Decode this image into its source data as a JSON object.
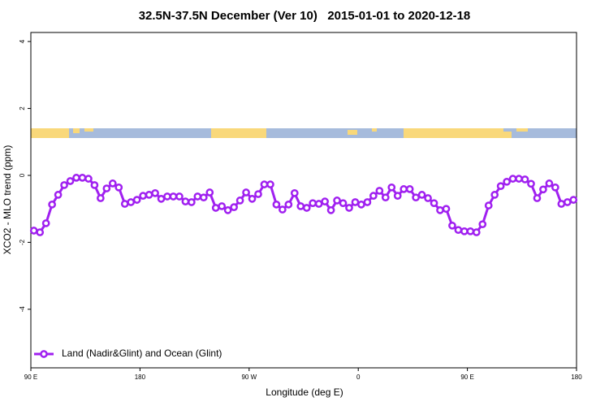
{
  "chart_data": {
    "type": "line",
    "title": "32.5N-37.5N December (Ver 10)   2015-01-01 to 2020-12-18",
    "x_label": "Longitude (deg E)",
    "y_label": "XCO2 - MLO trend (ppm)",
    "xlim": [
      90,
      540
    ],
    "ylim": [
      -5.75,
      4.27
    ],
    "xticks": [
      {
        "value": 90,
        "label": "90 E"
      },
      180,
      {
        "value": 270,
        "label": "90 W"
      },
      {
        "value": 360,
        "label": "0"
      },
      {
        "value": 450,
        "label": "90 E"
      },
      180.0001
    ],
    "yticks": [
      -4,
      -2,
      0,
      2,
      4
    ],
    "legend": "bottom-left",
    "x": [
      92.5,
      97.5,
      102.5,
      107.5,
      112.5,
      117.5,
      122.5,
      127.5,
      132.5,
      137.5,
      142.5,
      147.5,
      152.5,
      157.5,
      162.5,
      167.5,
      172.5,
      177.5,
      182.5,
      187.5,
      192.5,
      197.5,
      202.5,
      207.5,
      212.5,
      217.5,
      222.5,
      227.5,
      232.5,
      237.5,
      242.5,
      247.5,
      252.5,
      257.5,
      262.5,
      267.5,
      272.5,
      277.5,
      282.5,
      287.5,
      292.5,
      297.5,
      302.5,
      307.5,
      312.5,
      317.5,
      322.5,
      327.5,
      332.5,
      337.5,
      342.5,
      347.5,
      352.5,
      357.5,
      362.5,
      367.5,
      372.5,
      377.5,
      382.5,
      387.5,
      392.5,
      397.5,
      402.5,
      407.5,
      412.5,
      417.5,
      422.5,
      427.5,
      432.5,
      437.5,
      442.5,
      447.5,
      452.5,
      457.5,
      462.5,
      467.5,
      472.5,
      477.5,
      482.5,
      487.5,
      492.5,
      497.5,
      502.5,
      507.5,
      512.5,
      517.5,
      522.5,
      527.5,
      532.5,
      537.5
    ],
    "series": [
      {
        "name": "Land (Nadir&Glint) and Ocean (Glint)",
        "color": "#a020f0",
        "values": [
          -1.65,
          -1.7,
          -1.43,
          -0.87,
          -0.58,
          -0.29,
          -0.17,
          -0.07,
          -0.07,
          -0.1,
          -0.29,
          -0.68,
          -0.39,
          -0.24,
          -0.36,
          -0.85,
          -0.8,
          -0.73,
          -0.61,
          -0.58,
          -0.53,
          -0.7,
          -0.63,
          -0.63,
          -0.63,
          -0.78,
          -0.8,
          -0.63,
          -0.66,
          -0.51,
          -0.97,
          -0.92,
          -1.04,
          -0.95,
          -0.75,
          -0.51,
          -0.7,
          -0.56,
          -0.27,
          -0.27,
          -0.87,
          -1.02,
          -0.87,
          -0.53,
          -0.92,
          -0.97,
          -0.83,
          -0.85,
          -0.78,
          -1.04,
          -0.75,
          -0.83,
          -0.97,
          -0.8,
          -0.87,
          -0.8,
          -0.61,
          -0.46,
          -0.66,
          -0.36,
          -0.61,
          -0.41,
          -0.41,
          -0.66,
          -0.58,
          -0.68,
          -0.83,
          -1.04,
          -1.0,
          -1.5,
          -1.63,
          -1.67,
          -1.67,
          -1.7,
          -1.46,
          -0.9,
          -0.58,
          -0.32,
          -0.19,
          -0.1,
          -0.1,
          -0.12,
          -0.25,
          -0.68,
          -0.42,
          -0.24,
          -0.36,
          -0.85,
          -0.8,
          -0.73
        ]
      }
    ]
  }
}
